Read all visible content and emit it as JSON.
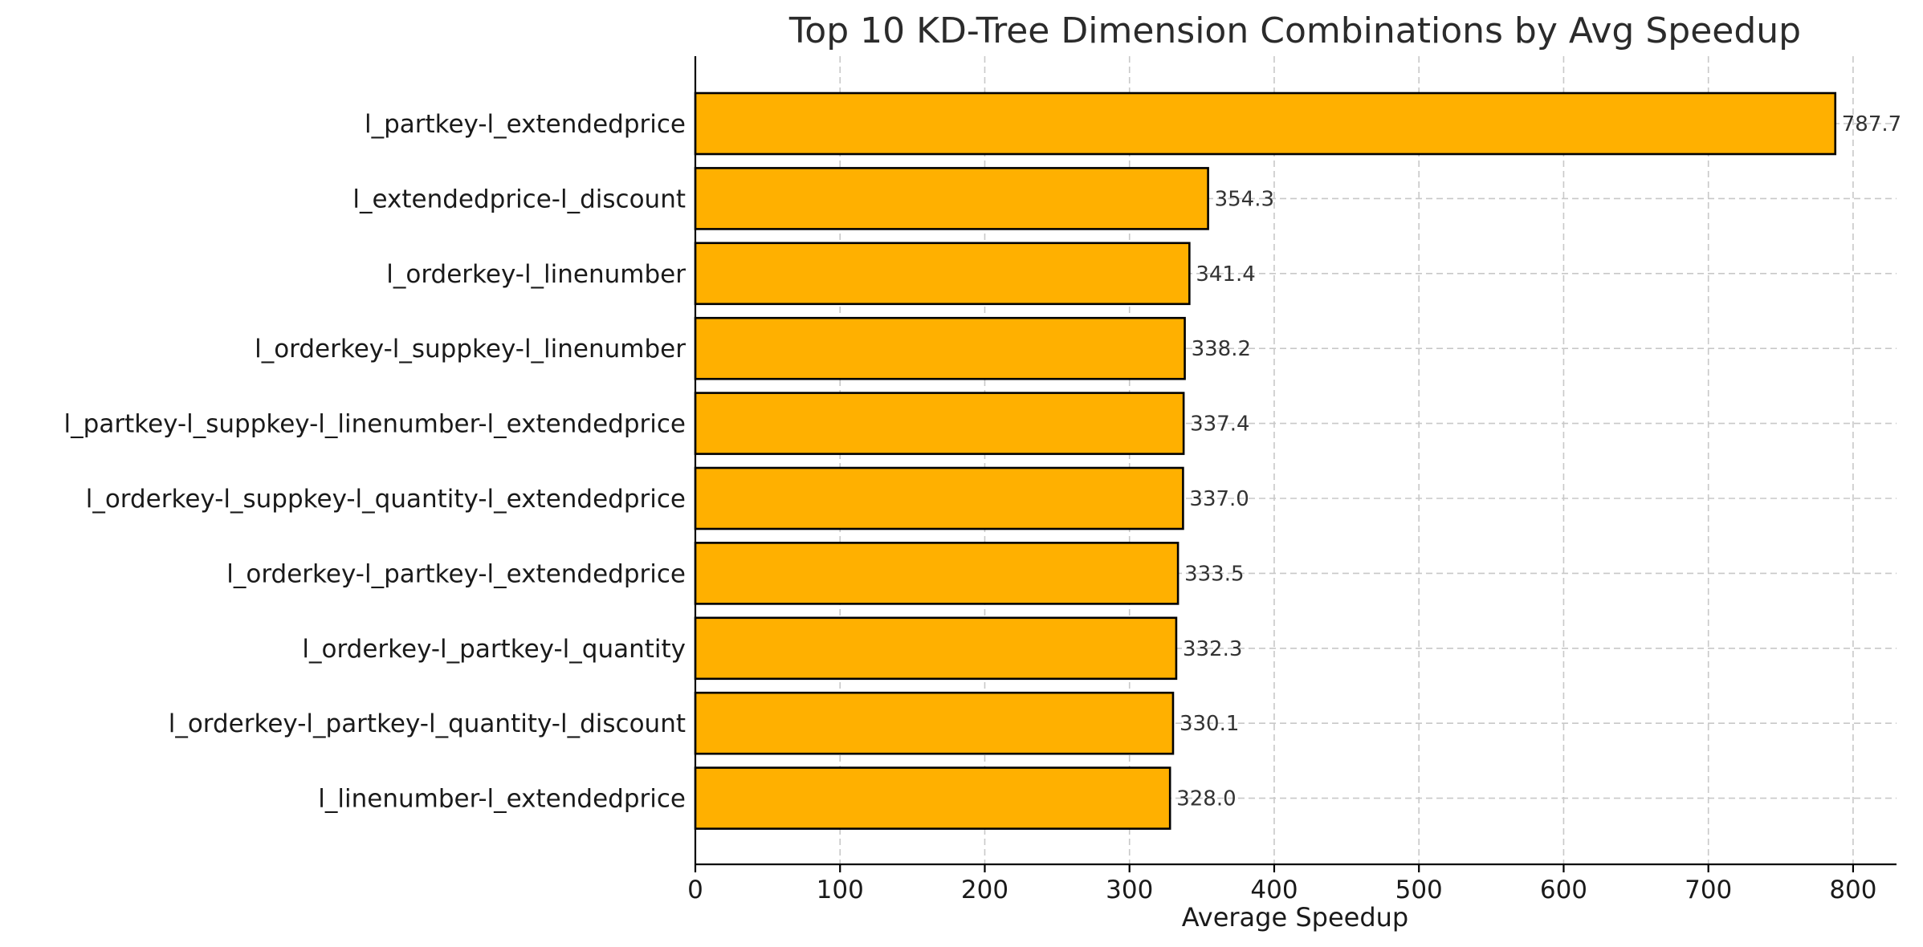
{
  "chart_data": {
    "type": "bar",
    "orientation": "horizontal",
    "title": "Top 10 KD-Tree Dimension Combinations by Avg Speedup",
    "xlabel": "Average Speedup",
    "ylabel": "",
    "xlim": [
      0,
      830
    ],
    "xticks": [
      0,
      100,
      200,
      300,
      400,
      500,
      600,
      700,
      800
    ],
    "grid": true,
    "bar_color": "#FFB000",
    "categories": [
      "l_partkey-l_extendedprice",
      "l_extendedprice-l_discount",
      "l_orderkey-l_linenumber",
      "l_orderkey-l_suppkey-l_linenumber",
      "l_partkey-l_suppkey-l_linenumber-l_extendedprice",
      "l_orderkey-l_suppkey-l_quantity-l_extendedprice",
      "l_orderkey-l_partkey-l_extendedprice",
      "l_orderkey-l_partkey-l_quantity",
      "l_orderkey-l_partkey-l_quantity-l_discount",
      "l_linenumber-l_extendedprice"
    ],
    "values": [
      787.7,
      354.3,
      341.4,
      338.2,
      337.4,
      337.0,
      333.5,
      332.3,
      330.1,
      328.0
    ],
    "value_labels": [
      "787.7",
      "354.3",
      "341.4",
      "338.2",
      "337.4",
      "337.0",
      "333.5",
      "332.3",
      "330.1",
      "328.0"
    ]
  }
}
